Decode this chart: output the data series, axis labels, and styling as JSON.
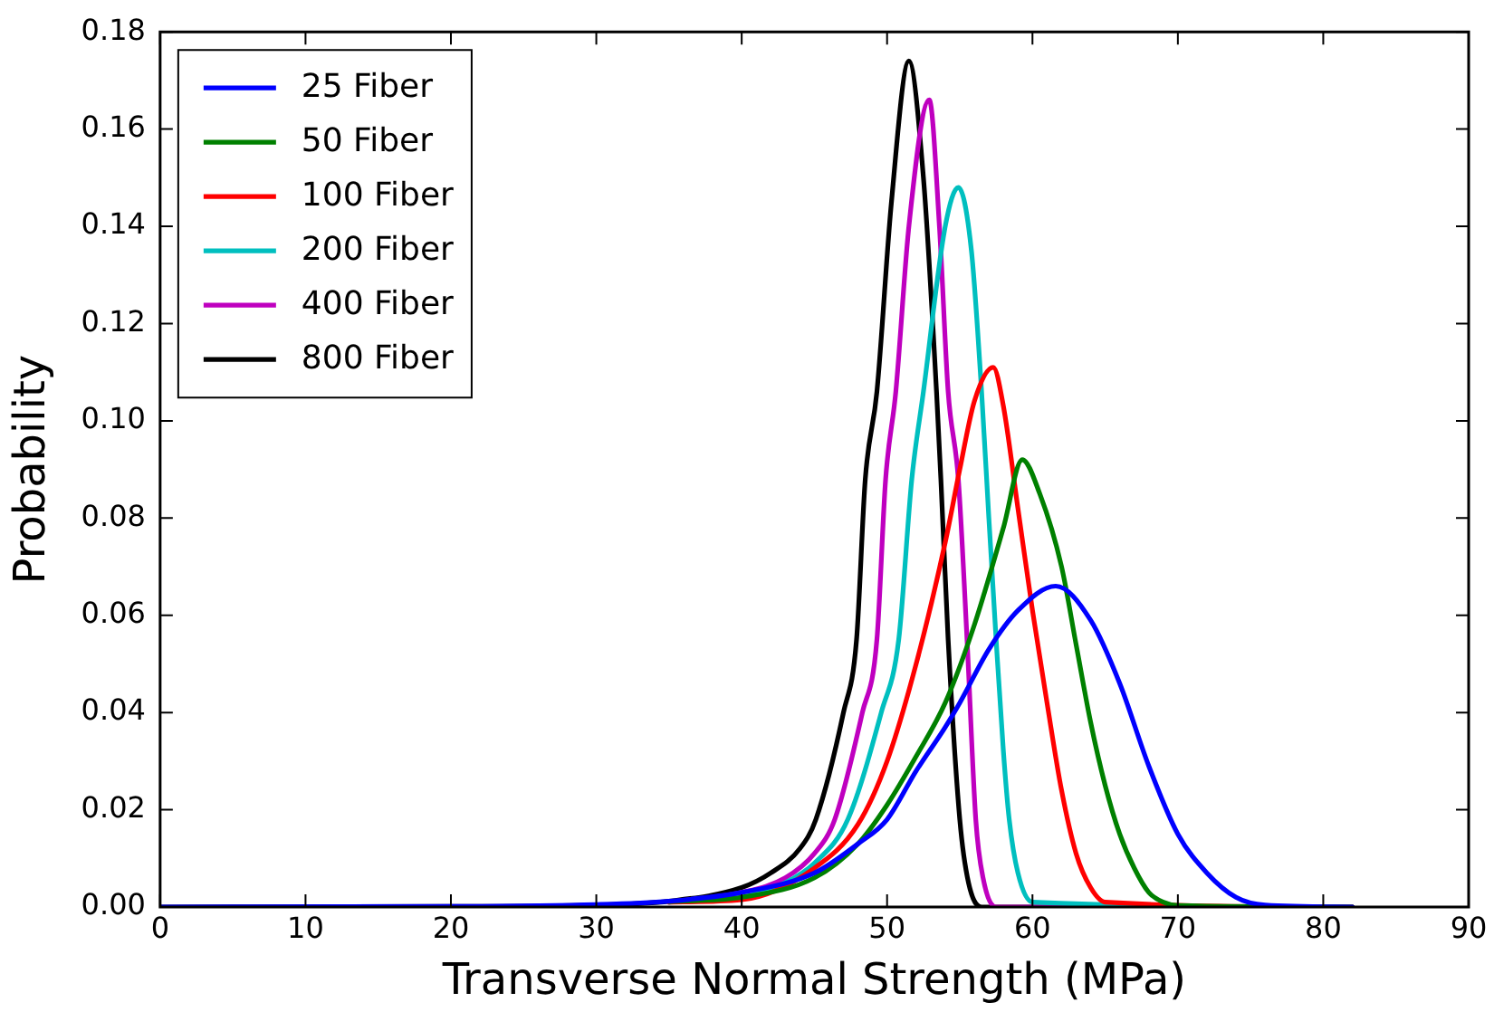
{
  "chart_data": {
    "type": "line",
    "xlabel": "Transverse Normal Strength (MPa)",
    "ylabel": "Probability",
    "xlim": [
      0,
      90
    ],
    "xticks": [
      0,
      10,
      20,
      30,
      40,
      50,
      60,
      70,
      80,
      90
    ],
    "ylim": [
      0,
      0.18
    ],
    "yticks": [
      {
        "value": 0,
        "label": "0.00"
      },
      {
        "value": 0.02,
        "label": "0.02"
      },
      {
        "value": 0.04,
        "label": "0.04"
      },
      {
        "value": 0.06,
        "label": "0.06"
      },
      {
        "value": 0.08,
        "label": "0.08"
      },
      {
        "value": 0.1,
        "label": "0.10"
      },
      {
        "value": 0.12,
        "label": "0.12"
      },
      {
        "value": 0.14,
        "label": "0.14"
      },
      {
        "value": 0.16,
        "label": "0.16"
      },
      {
        "value": 0.18,
        "label": "0.18"
      }
    ],
    "legend": "top left",
    "grid": false,
    "marker": "none",
    "line_style": "solid",
    "series": [
      {
        "name": "25 Fiber",
        "color": "#0000ff",
        "x": [
          0,
          20,
          30,
          35,
          40,
          45,
          48,
          50,
          52,
          54,
          55,
          57,
          59,
          61.6,
          64,
          66,
          68,
          70,
          72,
          74,
          76,
          82
        ],
        "values": [
          0,
          0.0001,
          0.0005,
          0.0012,
          0.003,
          0.007,
          0.013,
          0.018,
          0.028,
          0.037,
          0.042,
          0.053,
          0.061,
          0.066,
          0.059,
          0.046,
          0.029,
          0.015,
          0.007,
          0.002,
          0.0004,
          0
        ]
      },
      {
        "name": "50 Fiber",
        "color": "#008000",
        "x": [
          35,
          40,
          45,
          48,
          50,
          52,
          54,
          56,
          58,
          59.3,
          60.5,
          62,
          63,
          64,
          65,
          66,
          67,
          68,
          69,
          70,
          82
        ],
        "values": [
          0.0011,
          0.002,
          0.006,
          0.013,
          0.021,
          0.031,
          0.042,
          0.058,
          0.078,
          0.092,
          0.085,
          0.07,
          0.054,
          0.038,
          0.025,
          0.015,
          0.008,
          0.003,
          0.001,
          0.0003,
          0
        ]
      },
      {
        "name": "100 Fiber",
        "color": "#ff0000",
        "x": [
          35,
          40,
          45,
          48,
          50,
          52,
          54,
          55,
          56,
          57.3,
          58,
          59,
          60,
          61,
          62,
          63,
          64,
          65,
          82
        ],
        "values": [
          0.001,
          0.0015,
          0.008,
          0.017,
          0.03,
          0.05,
          0.075,
          0.09,
          0.104,
          0.111,
          0.103,
          0.082,
          0.061,
          0.042,
          0.024,
          0.011,
          0.004,
          0.001,
          0
        ]
      },
      {
        "name": "200 Fiber",
        "color": "#00bfbf",
        "x": [
          35,
          40,
          43,
          45,
          47.3,
          49.6,
          50.8,
          51.7,
          52.5,
          54,
          54.9,
          55.8,
          56.5,
          57,
          57.5,
          58,
          58.4,
          59,
          60,
          82
        ],
        "values": [
          0.001,
          0.002,
          0.005,
          0.009,
          0.018,
          0.04,
          0.055,
          0.088,
          0.106,
          0.14,
          0.148,
          0.135,
          0.106,
          0.08,
          0.055,
          0.032,
          0.018,
          0.007,
          0.001,
          0
        ]
      },
      {
        "name": "400 Fiber",
        "color": "#bf00bf",
        "x": [
          35,
          40,
          43,
          45,
          46.4,
          48.3,
          49.3,
          49.9,
          50.6,
          51.5,
          52.9,
          53.6,
          54.2,
          54.9,
          55.5,
          56.1,
          56.6,
          57.5,
          82
        ],
        "values": [
          0.001,
          0.003,
          0.006,
          0.011,
          0.018,
          0.04,
          0.055,
          0.088,
          0.106,
          0.14,
          0.166,
          0.14,
          0.106,
          0.088,
          0.055,
          0.018,
          0.006,
          0,
          0
        ]
      },
      {
        "name": "800 Fiber",
        "color": "#000000",
        "x": [
          0,
          20,
          30,
          35,
          40,
          42,
          44,
          45.1,
          47,
          47.9,
          48.5,
          49.3,
          50.3,
          51.5,
          52.5,
          53.4,
          53.7,
          54.2,
          55,
          55.6,
          56.5,
          82
        ],
        "values": [
          0,
          0.0001,
          0.0004,
          0.0012,
          0.004,
          0.007,
          0.012,
          0.018,
          0.04,
          0.055,
          0.088,
          0.106,
          0.145,
          0.174,
          0.15,
          0.106,
          0.088,
          0.055,
          0.018,
          0.005,
          0,
          0
        ]
      }
    ]
  }
}
